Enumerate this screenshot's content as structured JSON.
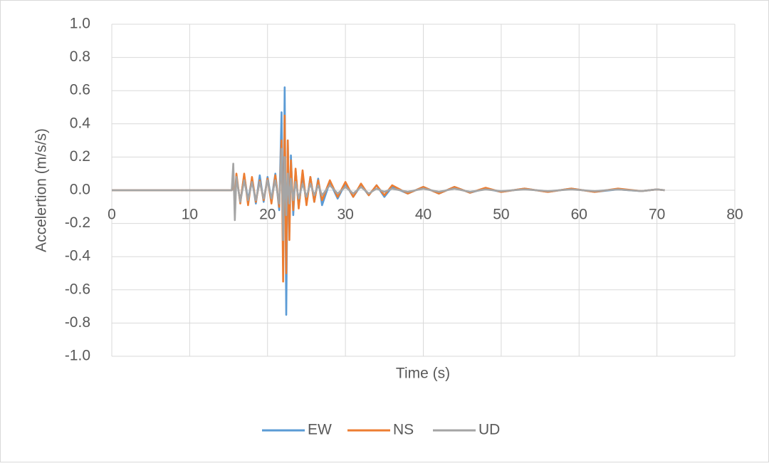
{
  "chart_data": {
    "type": "line",
    "x_label": "Time (s)",
    "y_label": "Accelertion (m/s/s)",
    "x": [
      0,
      15.4,
      15.6,
      15.8,
      16.0,
      16.5,
      17.0,
      17.5,
      18.0,
      18.5,
      19.0,
      19.5,
      20.0,
      20.5,
      21.0,
      21.5,
      21.8,
      22.0,
      22.2,
      22.4,
      22.6,
      22.8,
      23.0,
      23.3,
      23.6,
      24.0,
      24.5,
      25.0,
      25.5,
      26.0,
      26.5,
      27.0,
      28.0,
      29.0,
      30.0,
      31.0,
      32.0,
      33.0,
      34.0,
      35.0,
      36.0,
      38.0,
      40.0,
      42.0,
      44.0,
      46.0,
      48.0,
      50.0,
      53.0,
      56.0,
      59.0,
      62.0,
      65.0,
      68.0,
      70.0,
      71.0
    ],
    "series": [
      {
        "name": "EW",
        "color": "#5b9bd5",
        "values": [
          0,
          0,
          0.05,
          -0.06,
          0.08,
          -0.07,
          0.09,
          -0.06,
          0.07,
          -0.08,
          0.09,
          -0.07,
          0.08,
          -0.06,
          0.1,
          -0.12,
          0.47,
          -0.45,
          0.62,
          -0.75,
          0.3,
          -0.25,
          0.21,
          -0.15,
          0.12,
          -0.1,
          0.09,
          -0.08,
          0.08,
          -0.07,
          0.07,
          -0.09,
          0.05,
          -0.05,
          0.04,
          -0.04,
          0.03,
          -0.03,
          0.03,
          -0.04,
          0.02,
          -0.02,
          0.02,
          -0.02,
          0.02,
          -0.015,
          0.01,
          -0.01,
          0.01,
          -0.01,
          0.01,
          -0.01,
          0.005,
          -0.005,
          0.005,
          0
        ]
      },
      {
        "name": "NS",
        "color": "#ed7d31",
        "values": [
          0,
          0,
          0.04,
          -0.05,
          0.1,
          -0.08,
          0.1,
          -0.09,
          0.08,
          -0.07,
          0.06,
          -0.06,
          0.07,
          -0.08,
          0.09,
          -0.1,
          0.3,
          -0.55,
          0.45,
          -0.5,
          0.3,
          -0.3,
          0.18,
          -0.12,
          0.13,
          -0.11,
          0.12,
          -0.09,
          0.08,
          -0.07,
          0.06,
          -0.06,
          0.06,
          -0.04,
          0.05,
          -0.04,
          0.04,
          -0.03,
          0.03,
          -0.03,
          0.03,
          -0.02,
          0.02,
          -0.02,
          0.02,
          -0.015,
          0.015,
          -0.01,
          0.01,
          -0.01,
          0.01,
          -0.01,
          0.01,
          -0.005,
          0.005,
          0
        ]
      },
      {
        "name": "UD",
        "color": "#a5a5a5",
        "values": [
          0,
          0,
          0.16,
          -0.18,
          0.08,
          -0.07,
          0.06,
          -0.06,
          0.05,
          -0.06,
          0.05,
          -0.05,
          0.06,
          -0.05,
          0.06,
          -0.08,
          0.25,
          -0.3,
          0.2,
          -0.15,
          0.1,
          -0.08,
          0.07,
          -0.06,
          0.05,
          -0.05,
          0.04,
          -0.04,
          0.04,
          -0.03,
          0.03,
          -0.03,
          0.03,
          -0.02,
          0.02,
          -0.02,
          0.02,
          -0.02,
          0.01,
          -0.01,
          0.01,
          -0.01,
          0.01,
          -0.01,
          0.01,
          -0.01,
          0.005,
          -0.005,
          0.005,
          -0.005,
          0.005,
          -0.005,
          0.005,
          -0.005,
          0.005,
          0
        ]
      }
    ],
    "xlim": [
      0,
      80
    ],
    "xticks": [
      0,
      10,
      20,
      30,
      40,
      50,
      60,
      70,
      80
    ],
    "ylim": [
      -1.0,
      1.0
    ],
    "yticks": [
      {
        "value": -1.0,
        "label": "-1.0"
      },
      -0.8,
      -0.6,
      -0.4,
      -0.2,
      {
        "value": 0.0,
        "label": "0.0"
      },
      0.2,
      0.4,
      0.6,
      0.8,
      {
        "value": 1.0,
        "label": "1.0"
      }
    ],
    "grid": true,
    "legend": "bottom"
  }
}
